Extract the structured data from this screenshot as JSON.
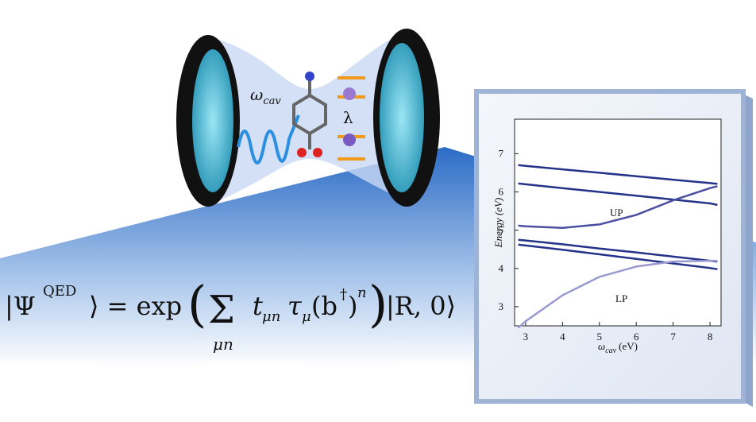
{
  "illustration": {
    "cavity_label": {
      "symbol": "ω",
      "subscript": "cav"
    },
    "coupling_label": "λ",
    "formula": [
      "|Ψ",
      "QED",
      "⟩ = exp",
      "(",
      "Σ",
      "μn",
      "t",
      "μn",
      "τ",
      "μ",
      "(b",
      "†",
      ")",
      "n",
      ")",
      "|R, 0⟩"
    ]
  },
  "chart_data": {
    "type": "line",
    "x_label": {
      "symbol": "ω",
      "subscript": "cav",
      "unit": "(eV)"
    },
    "y_label": "Energy (eV)",
    "annotations": [
      "UP",
      "LP"
    ],
    "x": [
      2.8,
      3,
      4,
      5,
      6,
      7,
      8,
      8.2
    ],
    "series": [
      {
        "color": "#24338a",
        "values": [
          6.7,
          6.68,
          6.59,
          6.5,
          6.41,
          6.32,
          6.23,
          6.21
        ]
      },
      {
        "color": "#24338a",
        "values": [
          6.22,
          6.2,
          6.1,
          6.0,
          5.9,
          5.8,
          5.7,
          5.66
        ]
      },
      {
        "color": "#4a4fa0",
        "values": [
          5.12,
          5.1,
          5.06,
          5.15,
          5.4,
          5.78,
          6.1,
          6.15
        ]
      },
      {
        "color": "#24338a",
        "values": [
          4.75,
          4.73,
          4.63,
          4.52,
          4.42,
          4.31,
          4.2,
          4.18
        ]
      },
      {
        "color": "#24338a",
        "values": [
          4.62,
          4.6,
          4.49,
          4.37,
          4.25,
          4.13,
          4.01,
          3.98
        ]
      },
      {
        "color": "#9a9ad0",
        "values": [
          2.45,
          2.62,
          3.3,
          3.78,
          4.05,
          4.18,
          4.2,
          4.2
        ]
      }
    ],
    "xlim": [
      2.7,
      8.3
    ],
    "ylim": [
      2.5,
      7.9
    ],
    "xticks": [
      3,
      4,
      5,
      6,
      7,
      8
    ],
    "yticks": [
      3,
      4,
      5,
      6,
      7
    ]
  }
}
